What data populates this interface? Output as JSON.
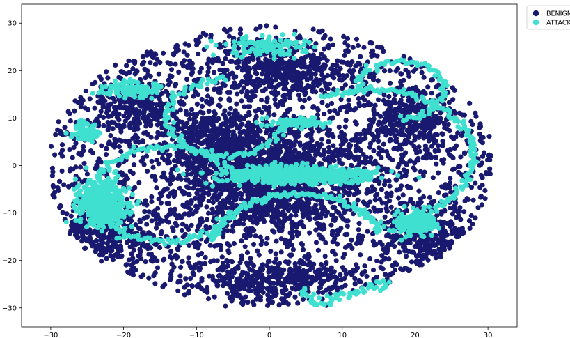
{
  "chart_data": {
    "type": "scatter",
    "title": "",
    "xlabel": "",
    "ylabel": "",
    "xlim": [
      -34,
      34
    ],
    "ylim": [
      -34,
      34
    ],
    "xticks": [
      -30,
      -20,
      -10,
      0,
      10,
      20,
      30
    ],
    "yticks": [
      -30,
      -20,
      -10,
      0,
      10,
      20,
      30
    ],
    "xtick_labels": [
      "−30",
      "−20",
      "−10",
      "0",
      "10",
      "20",
      "30"
    ],
    "ytick_labels": [
      "−30",
      "−20",
      "−10",
      "0",
      "10",
      "20",
      "30"
    ],
    "grid": false,
    "legend_position": "outside-top-right",
    "series": [
      {
        "name": "BENIGN",
        "color": "#191970",
        "clusters": [
          {
            "center": [
              0,
              -2
            ],
            "spread": [
              14,
              13
            ],
            "count": 1500
          },
          {
            "center": [
              2,
              20
            ],
            "spread": [
              10,
              5
            ],
            "count": 350
          },
          {
            "center": [
              -18,
              12
            ],
            "spread": [
              6,
              6
            ],
            "count": 250
          },
          {
            "center": [
              -22,
              -14
            ],
            "spread": [
              6,
              6
            ],
            "count": 250
          },
          {
            "center": [
              20,
              10
            ],
            "spread": [
              6,
              6
            ],
            "count": 250
          },
          {
            "center": [
              22,
              -14
            ],
            "spread": [
              5,
              6
            ],
            "count": 200
          },
          {
            "center": [
              0,
              -24
            ],
            "spread": [
              10,
              4
            ],
            "count": 300
          },
          {
            "center": [
              -8,
              6
            ],
            "spread": [
              6,
              6
            ],
            "count": 250
          }
        ],
        "x_extent": [
          -31,
          31
        ],
        "y_extent": [
          -30,
          31
        ]
      },
      {
        "name": "ATTACK",
        "color": "#40E0D0",
        "clusters": [
          {
            "center": [
              4,
              -2
            ],
            "spread": [
              10,
              1.6
            ],
            "count": 700
          },
          {
            "center": [
              -23,
              -8
            ],
            "spread": [
              3.5,
              5
            ],
            "count": 450
          },
          {
            "center": [
              20,
              -12
            ],
            "spread": [
              3,
              2.5
            ],
            "count": 200
          },
          {
            "center": [
              -19,
              16
            ],
            "spread": [
              4,
              1.6
            ],
            "count": 120
          },
          {
            "center": [
              4,
              9
            ],
            "spread": [
              4,
              0.9
            ],
            "count": 100
          },
          {
            "center": [
              0,
              25
            ],
            "spread": [
              6,
              2
            ],
            "count": 120
          },
          {
            "center": [
              -25,
              7
            ],
            "spread": [
              2,
              2
            ],
            "count": 80
          }
        ],
        "arcs": [
          {
            "cx": -14,
            "cy": -6,
            "r": 10,
            "a0": 30,
            "a1": 320,
            "count": 140
          },
          {
            "cx": 4,
            "cy": -18,
            "r": 12,
            "a0": 20,
            "a1": 170,
            "count": 120
          },
          {
            "cx": 14,
            "cy": 2,
            "r": 14,
            "a0": -60,
            "a1": 120,
            "count": 140
          },
          {
            "cx": -6,
            "cy": 10,
            "r": 8,
            "a0": 90,
            "a1": 360,
            "count": 100
          },
          {
            "cx": 10,
            "cy": -24,
            "r": 6,
            "a0": 200,
            "a1": 360,
            "count": 60
          },
          {
            "cx": 18,
            "cy": 16,
            "r": 6,
            "a0": -90,
            "a1": 180,
            "count": 80
          }
        ],
        "x_extent": [
          -30,
          29
        ],
        "y_extent": [
          -30,
          30
        ]
      }
    ]
  }
}
